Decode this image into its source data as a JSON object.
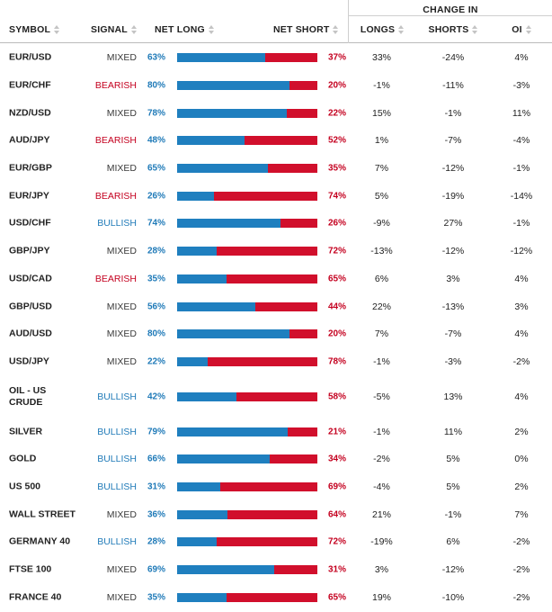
{
  "header": {
    "change_in": "CHANGE IN",
    "symbol": "SYMBOL",
    "signal": "SIGNAL",
    "net_long": "NET LONG",
    "net_short": "NET SHORT",
    "longs": "LONGS",
    "shorts": "SHORTS",
    "oi": "OI"
  },
  "colors": {
    "long": "#1f7fbf",
    "short": "#d10f2c",
    "bearish": "#c4001f",
    "bullish": "#1f7ab8"
  },
  "rows": [
    {
      "symbol": "EUR/USD",
      "signal": "MIXED",
      "net_long": "63%",
      "net_long_value": 63,
      "net_short": "37%",
      "longs": "33%",
      "shorts": "-24%",
      "oi": "4%"
    },
    {
      "symbol": "EUR/CHF",
      "signal": "BEARISH",
      "net_long": "80%",
      "net_long_value": 80,
      "net_short": "20%",
      "longs": "-1%",
      "shorts": "-11%",
      "oi": "-3%"
    },
    {
      "symbol": "NZD/USD",
      "signal": "MIXED",
      "net_long": "78%",
      "net_long_value": 78,
      "net_short": "22%",
      "longs": "15%",
      "shorts": "-1%",
      "oi": "11%"
    },
    {
      "symbol": "AUD/JPY",
      "signal": "BEARISH",
      "net_long": "48%",
      "net_long_value": 48,
      "net_short": "52%",
      "longs": "1%",
      "shorts": "-7%",
      "oi": "-4%"
    },
    {
      "symbol": "EUR/GBP",
      "signal": "MIXED",
      "net_long": "65%",
      "net_long_value": 65,
      "net_short": "35%",
      "longs": "7%",
      "shorts": "-12%",
      "oi": "-1%"
    },
    {
      "symbol": "EUR/JPY",
      "signal": "BEARISH",
      "net_long": "26%",
      "net_long_value": 26,
      "net_short": "74%",
      "longs": "5%",
      "shorts": "-19%",
      "oi": "-14%"
    },
    {
      "symbol": "USD/CHF",
      "signal": "BULLISH",
      "net_long": "74%",
      "net_long_value": 74,
      "net_short": "26%",
      "longs": "-9%",
      "shorts": "27%",
      "oi": "-1%"
    },
    {
      "symbol": "GBP/JPY",
      "signal": "MIXED",
      "net_long": "28%",
      "net_long_value": 28,
      "net_short": "72%",
      "longs": "-13%",
      "shorts": "-12%",
      "oi": "-12%"
    },
    {
      "symbol": "USD/CAD",
      "signal": "BEARISH",
      "net_long": "35%",
      "net_long_value": 35,
      "net_short": "65%",
      "longs": "6%",
      "shorts": "3%",
      "oi": "4%"
    },
    {
      "symbol": "GBP/USD",
      "signal": "MIXED",
      "net_long": "56%",
      "net_long_value": 56,
      "net_short": "44%",
      "longs": "22%",
      "shorts": "-13%",
      "oi": "3%"
    },
    {
      "symbol": "AUD/USD",
      "signal": "MIXED",
      "net_long": "80%",
      "net_long_value": 80,
      "net_short": "20%",
      "longs": "7%",
      "shorts": "-7%",
      "oi": "4%"
    },
    {
      "symbol": "USD/JPY",
      "signal": "MIXED",
      "net_long": "22%",
      "net_long_value": 22,
      "net_short": "78%",
      "longs": "-1%",
      "shorts": "-3%",
      "oi": "-2%"
    },
    {
      "symbol": "OIL - US CRUDE",
      "signal": "BULLISH",
      "net_long": "42%",
      "net_long_value": 42,
      "net_short": "58%",
      "longs": "-5%",
      "shorts": "13%",
      "oi": "4%",
      "tall": true
    },
    {
      "symbol": "SILVER",
      "signal": "BULLISH",
      "net_long": "79%",
      "net_long_value": 79,
      "net_short": "21%",
      "longs": "-1%",
      "shorts": "11%",
      "oi": "2%"
    },
    {
      "symbol": "GOLD",
      "signal": "BULLISH",
      "net_long": "66%",
      "net_long_value": 66,
      "net_short": "34%",
      "longs": "-2%",
      "shorts": "5%",
      "oi": "0%"
    },
    {
      "symbol": "US 500",
      "signal": "BULLISH",
      "net_long": "31%",
      "net_long_value": 31,
      "net_short": "69%",
      "longs": "-4%",
      "shorts": "5%",
      "oi": "2%"
    },
    {
      "symbol": "WALL STREET",
      "signal": "MIXED",
      "net_long": "36%",
      "net_long_value": 36,
      "net_short": "64%",
      "longs": "21%",
      "shorts": "-1%",
      "oi": "7%"
    },
    {
      "symbol": "GERMANY 40",
      "signal": "BULLISH",
      "net_long": "28%",
      "net_long_value": 28,
      "net_short": "72%",
      "longs": "-19%",
      "shorts": "6%",
      "oi": "-2%"
    },
    {
      "symbol": "FTSE 100",
      "signal": "MIXED",
      "net_long": "69%",
      "net_long_value": 69,
      "net_short": "31%",
      "longs": "3%",
      "shorts": "-12%",
      "oi": "-2%"
    },
    {
      "symbol": "FRANCE 40",
      "signal": "MIXED",
      "net_long": "35%",
      "net_long_value": 35,
      "net_short": "65%",
      "longs": "19%",
      "shorts": "-10%",
      "oi": "-2%"
    }
  ]
}
